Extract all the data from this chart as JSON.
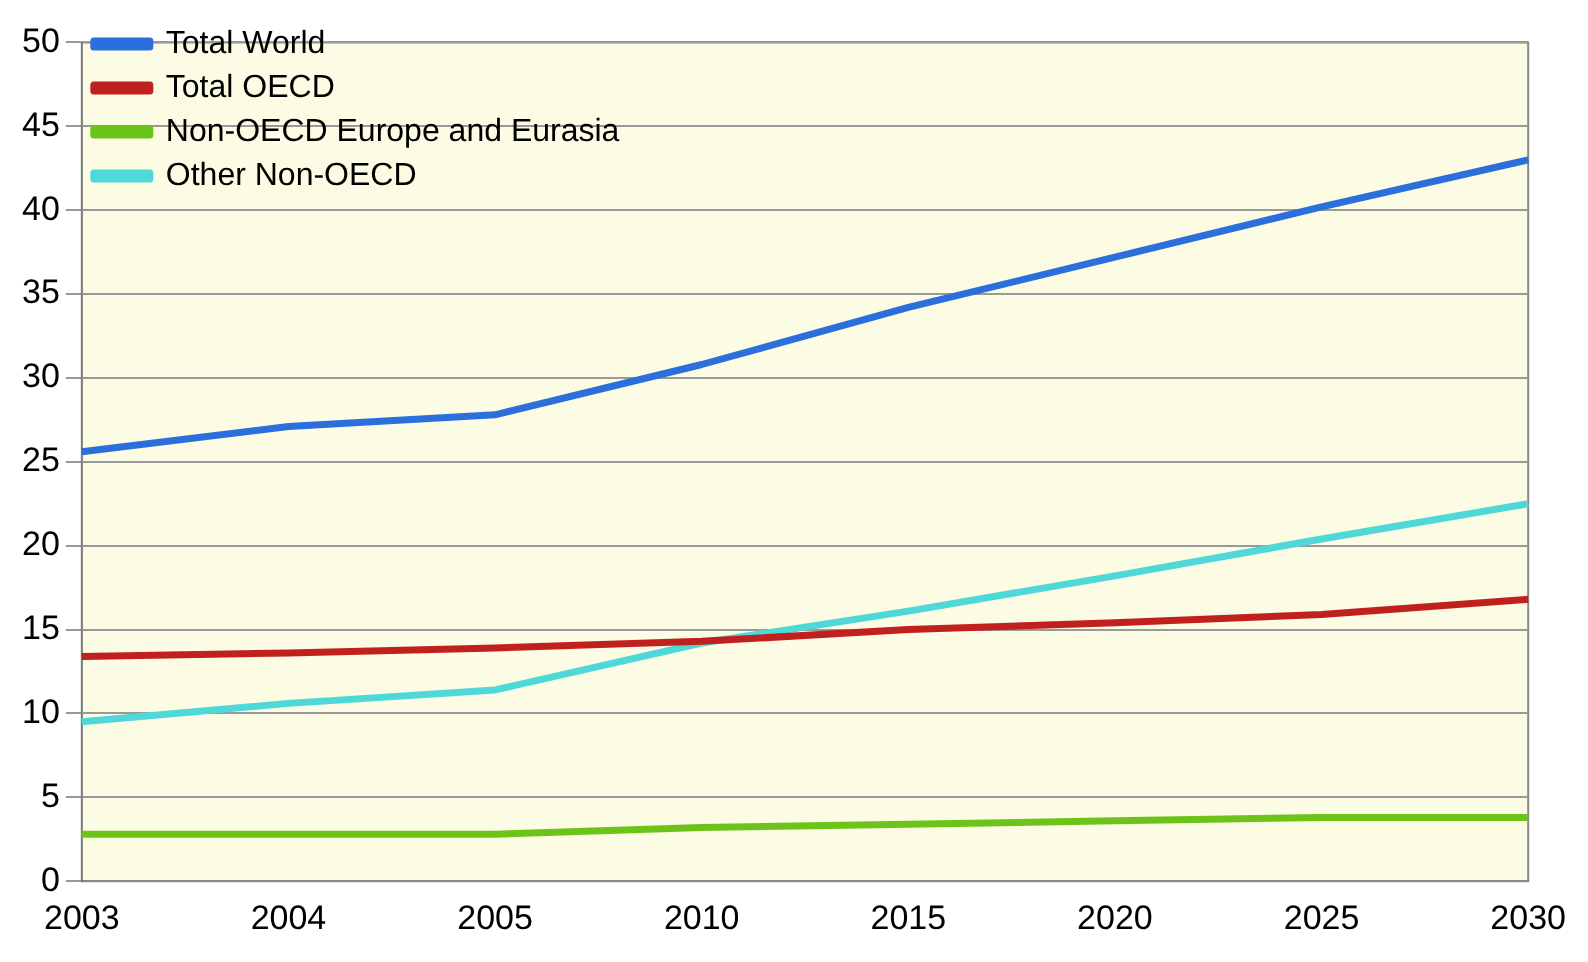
{
  "chart_data": {
    "type": "line",
    "categories": [
      "2003",
      "2004",
      "2005",
      "2010",
      "2015",
      "2020",
      "2025",
      "2030"
    ],
    "series": [
      {
        "name": "Total World",
        "color": "#2a6fdb",
        "values": [
          25.6,
          27.1,
          27.8,
          30.8,
          34.2,
          37.2,
          40.2,
          43.0
        ]
      },
      {
        "name": "Total OECD",
        "color": "#c0201e",
        "values": [
          13.4,
          13.6,
          13.9,
          14.3,
          15.0,
          15.4,
          15.9,
          16.8
        ]
      },
      {
        "name": "Non-OECD Europe and Eurasia",
        "color": "#6cc41a",
        "values": [
          2.8,
          2.8,
          2.8,
          3.2,
          3.4,
          3.6,
          3.8,
          3.8
        ]
      },
      {
        "name": "Other Non-OECD",
        "color": "#4fd8d8",
        "values": [
          9.5,
          10.6,
          11.4,
          14.2,
          16.1,
          18.2,
          20.4,
          22.5
        ]
      }
    ],
    "ylim": [
      0,
      50
    ],
    "yticks": [
      0,
      5,
      10,
      15,
      20,
      25,
      30,
      35,
      40,
      45,
      50
    ],
    "grid": "y",
    "legend": "top left",
    "marker": "none",
    "line_style": "solid"
  }
}
